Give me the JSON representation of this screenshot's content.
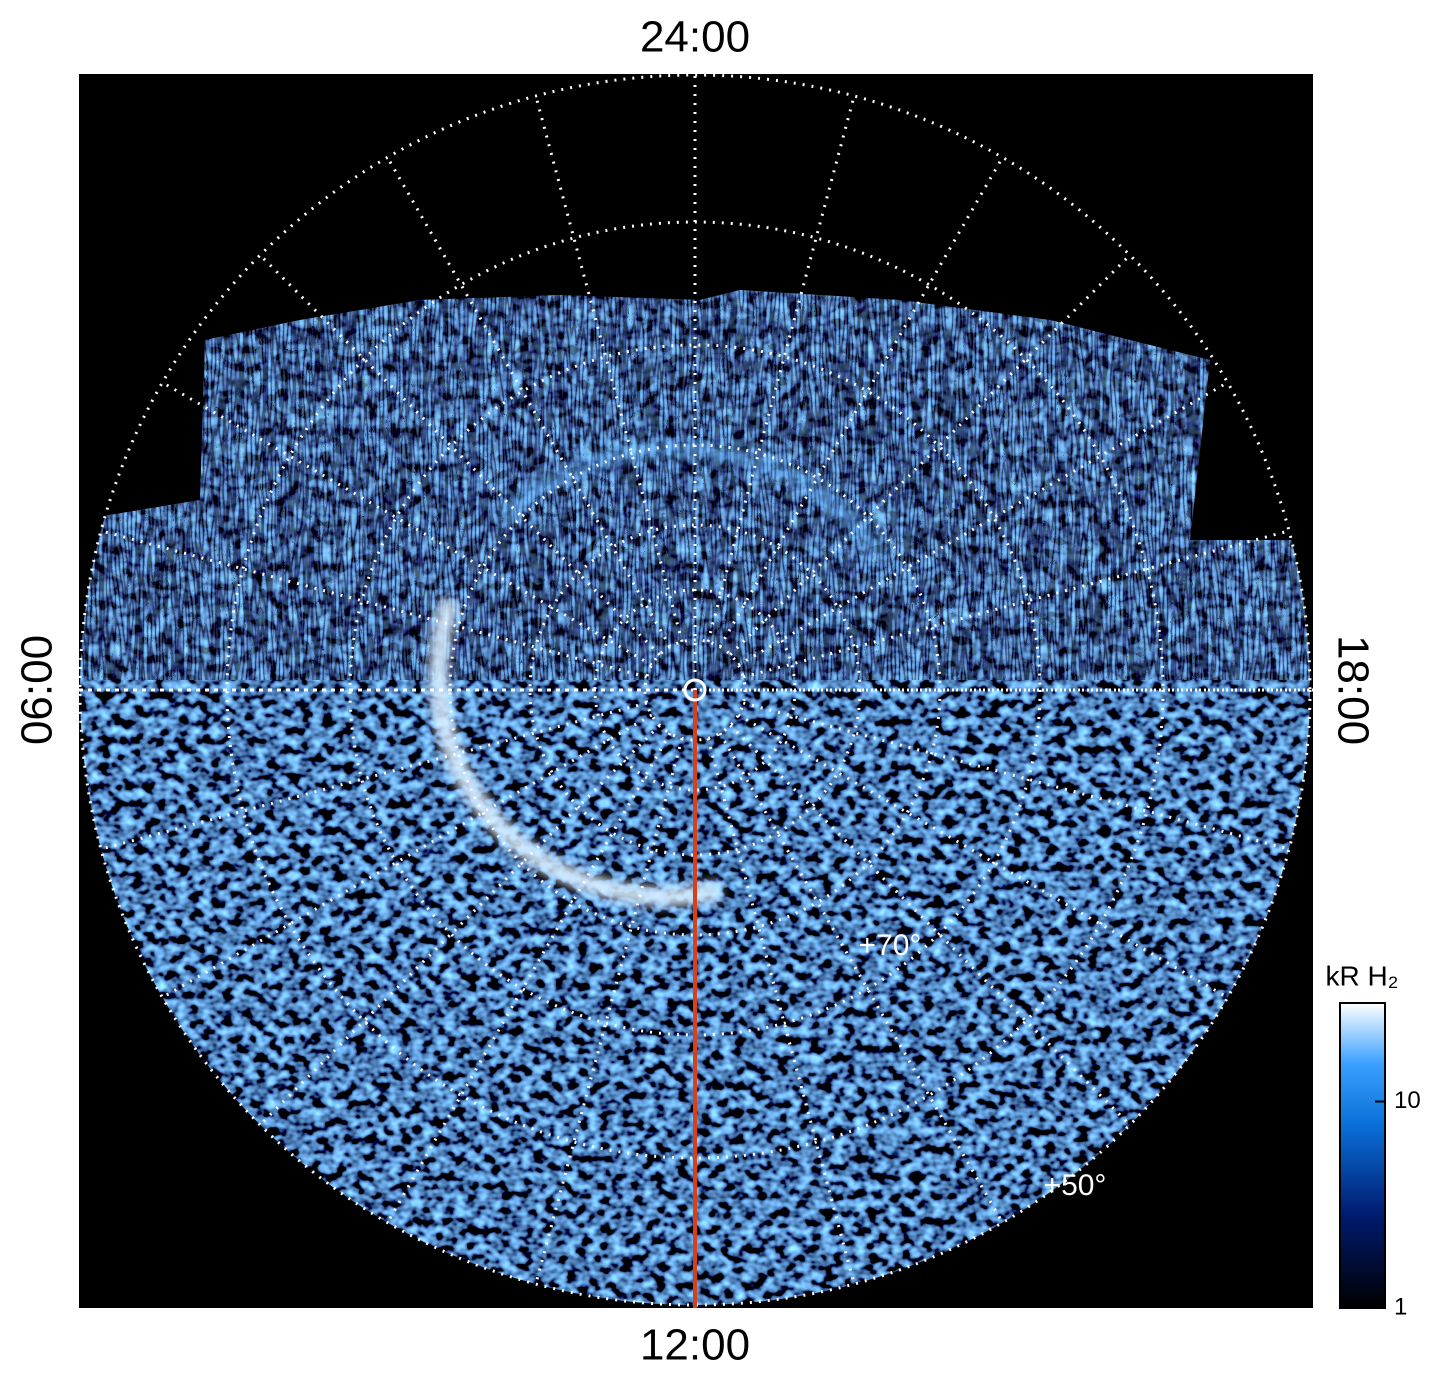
{
  "hour_labels": {
    "top": "24:00",
    "bottom": "12:00",
    "left": "06:00",
    "right": "18:00"
  },
  "latitude_labels": [
    "+70°",
    "+50°"
  ],
  "colorbar": {
    "label": "kR H₂",
    "scale": "log",
    "lim": [
      1,
      30
    ],
    "ticks": [
      1,
      10
    ]
  }
}
